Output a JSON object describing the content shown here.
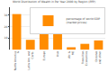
{
  "chart_data": {
    "type": "bar",
    "title": "World Distribution of Wealth in Per Year 2000 by Region (PPP)",
    "categories": [
      "North America\n&",
      "Latin Am. and\nCarib.",
      "Europe",
      "Asia",
      "Afr. &\nME",
      "Transition\nEconomies",
      "Oceania\nand other"
    ],
    "series": [
      {
        "name": "percentage of world GDP\n(market prices)",
        "color": "#FF8C00",
        "values": [
          31.0,
          8.5,
          28.0,
          33.0,
          2.0,
          5.0,
          8.0
        ]
      }
    ],
    "ylim": [
      0,
      37
    ],
    "yticks": [
      10,
      20,
      30
    ],
    "grid": true,
    "legend": "upper right"
  }
}
